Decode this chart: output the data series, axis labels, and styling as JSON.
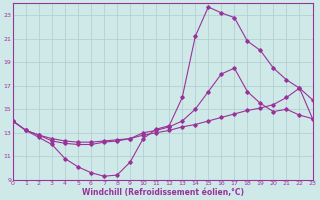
{
  "xlabel": "Windchill (Refroidissement éolien,°C)",
  "bg_color": "#cfe9e9",
  "line_color": "#993399",
  "grid_color": "#b0cccc",
  "xlim": [
    0,
    23
  ],
  "ylim": [
    9,
    24
  ],
  "xticks": [
    0,
    1,
    2,
    3,
    4,
    5,
    6,
    7,
    8,
    9,
    10,
    11,
    12,
    13,
    14,
    15,
    16,
    17,
    18,
    19,
    20,
    21,
    22,
    23
  ],
  "yticks": [
    9,
    11,
    13,
    15,
    17,
    19,
    21,
    23
  ],
  "curve1_x": [
    0,
    1,
    2,
    3,
    4,
    5,
    6,
    7,
    8,
    9,
    10,
    11,
    12,
    13,
    14,
    15,
    16,
    17,
    18,
    19,
    20,
    21,
    22,
    23
  ],
  "curve1_y": [
    14.0,
    13.2,
    12.6,
    12.0,
    10.8,
    10.1,
    9.6,
    9.3,
    9.4,
    10.5,
    12.5,
    13.3,
    13.6,
    16.0,
    21.2,
    23.7,
    23.2,
    22.8,
    20.8,
    20.0,
    18.5,
    17.5,
    16.8,
    15.8
  ],
  "curve2_x": [
    0,
    1,
    2,
    3,
    4,
    5,
    6,
    7,
    8,
    9,
    10,
    11,
    12,
    13,
    14,
    15,
    16,
    17,
    18,
    19,
    20,
    21,
    22,
    23
  ],
  "curve2_y": [
    14.0,
    13.2,
    12.8,
    12.3,
    12.1,
    12.0,
    12.0,
    12.2,
    12.3,
    12.5,
    13.0,
    13.2,
    13.5,
    14.0,
    15.0,
    16.5,
    18.0,
    18.5,
    16.5,
    15.5,
    14.8,
    15.0,
    14.5,
    14.2
  ],
  "curve3_x": [
    0,
    1,
    2,
    3,
    4,
    5,
    6,
    7,
    8,
    9,
    10,
    11,
    12,
    13,
    14,
    15,
    16,
    17,
    18,
    19,
    20,
    21,
    22,
    23
  ],
  "curve3_y": [
    14.0,
    13.2,
    12.8,
    12.5,
    12.3,
    12.2,
    12.2,
    12.3,
    12.4,
    12.5,
    12.8,
    13.0,
    13.2,
    13.5,
    13.7,
    14.0,
    14.3,
    14.6,
    14.9,
    15.1,
    15.4,
    16.0,
    16.8,
    14.2
  ],
  "xlabel_fontsize": 5.5,
  "tick_fontsize": 4.5,
  "lw": 0.8,
  "ms": 1.8
}
